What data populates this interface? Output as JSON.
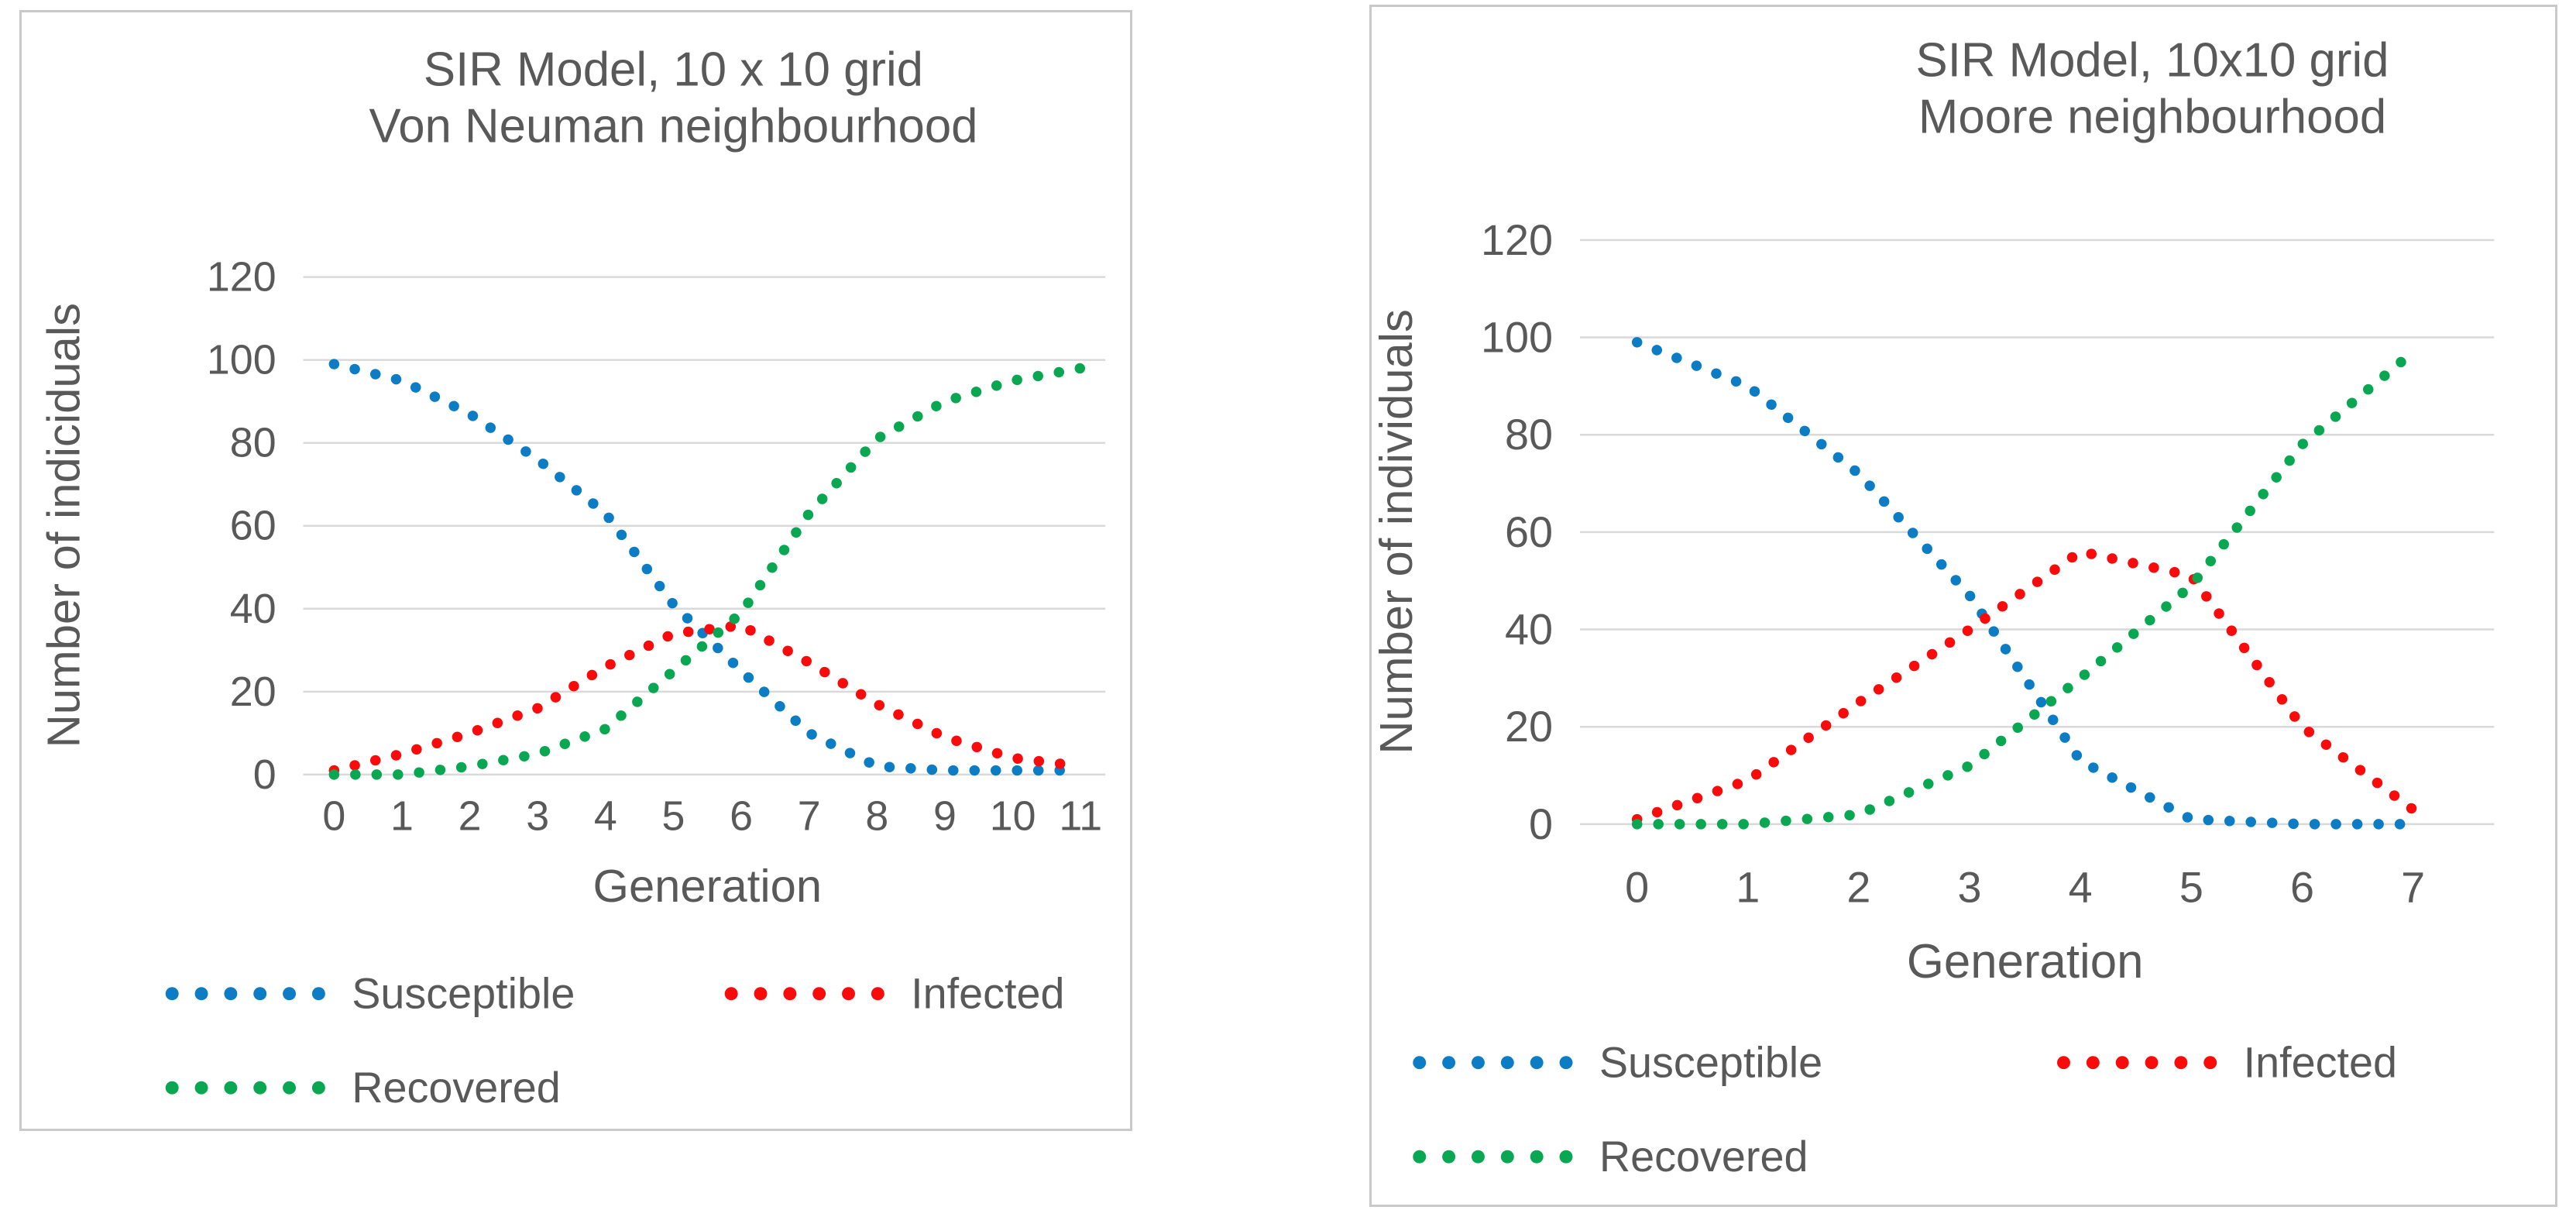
{
  "colors": {
    "text": "#595959",
    "grid": "#d9d9d9",
    "card_border": "#c9c9c9",
    "susceptible": "#0c7cc4",
    "infected": "#fa0a0a",
    "recovered": "#09a751"
  },
  "chart_data": [
    {
      "type": "line",
      "line_style": "dotted",
      "title_line1": "SIR Model, 10 x 10 grid",
      "title_line2": "Von Neuman neighbourhood",
      "xlabel": "Generation",
      "ylabel": "Number of indiciduals",
      "categories": [
        0,
        1,
        2,
        3,
        4,
        5,
        6,
        7,
        8,
        9,
        10,
        11
      ],
      "yticks": [
        0,
        20,
        40,
        60,
        80,
        100,
        120
      ],
      "ylim": [
        0,
        120
      ],
      "grid": "horizontal",
      "legend_position": "bottom",
      "series": [
        {
          "name": "Susceptible",
          "color_key": "susceptible",
          "values": [
            99,
            95,
            87,
            76,
            63,
            41,
            25,
            10,
            2,
            1,
            1,
            1
          ]
        },
        {
          "name": "Infected",
          "color_key": "infected",
          "values": [
            1,
            5,
            10,
            16,
            26,
            34,
            36,
            27,
            17,
            9,
            4,
            2
          ]
        },
        {
          "name": "Recovered",
          "color_key": "recovered",
          "values": [
            0,
            0,
            2,
            5,
            11,
            25,
            39,
            63,
            81,
            90,
            95,
            98
          ]
        }
      ]
    },
    {
      "type": "line",
      "line_style": "dotted",
      "title_line1": "SIR Model, 10x10 grid",
      "title_line2": "Moore neighbourhood",
      "xlabel": "Generation",
      "ylabel": "Number of individuals",
      "categories": [
        0,
        1,
        2,
        3,
        4,
        5,
        6,
        7
      ],
      "yticks": [
        0,
        20,
        40,
        60,
        80,
        100,
        120
      ],
      "ylim": [
        0,
        120
      ],
      "grid": "horizontal",
      "legend_position": "bottom",
      "series": [
        {
          "name": "Susceptible",
          "color_key": "susceptible",
          "values": [
            99,
            90,
            72,
            47,
            13,
            1,
            0,
            0
          ]
        },
        {
          "name": "Infected",
          "color_key": "infected",
          "values": [
            1,
            9,
            25,
            40,
            56,
            51,
            20,
            3
          ]
        },
        {
          "name": "Recovered",
          "color_key": "recovered",
          "values": [
            0,
            0,
            2,
            12,
            30,
            49,
            78,
            97
          ]
        }
      ]
    }
  ]
}
